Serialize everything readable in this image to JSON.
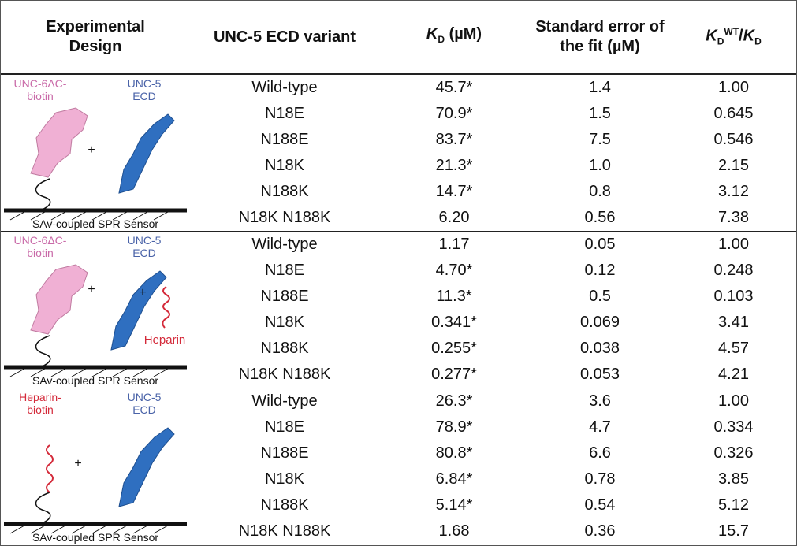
{
  "header": {
    "columns": [
      {
        "text": "Experimental Design"
      },
      {
        "text": "UNC-5 ECD variant"
      },
      {
        "k": "K",
        "sub": "D",
        "rest": " (µM)"
      },
      {
        "text": "Standard error of the fit (µM)"
      },
      {
        "k": "K",
        "sub": "D",
        "sup": "WT",
        "mid": "/",
        "k2": "K",
        "sub2": "D"
      }
    ]
  },
  "groups": [
    {
      "design": {
        "left": [
          "UNC-6ΔC-",
          "biotin"
        ],
        "right": [
          "UNC-5",
          "ECD"
        ],
        "sensor": "SAv-coupled SPR Sensor"
      },
      "rows": [
        [
          "Wild-type",
          "45.7*",
          "1.4",
          "1.00"
        ],
        [
          "N18E",
          "70.9*",
          "1.5",
          "0.645"
        ],
        [
          "N188E",
          "83.7*",
          "7.5",
          "0.546"
        ],
        [
          "N18K",
          "21.3*",
          "1.0",
          "2.15"
        ],
        [
          "N188K",
          "14.7*",
          "0.8",
          "3.12"
        ],
        [
          "N18K N188K",
          "6.20",
          "0.56",
          "7.38"
        ]
      ]
    },
    {
      "design": {
        "left": [
          "UNC-6ΔC-",
          "biotin"
        ],
        "right": [
          "UNC-5",
          "ECD"
        ],
        "extra": "Heparin",
        "sensor": "SAv-coupled SPR Sensor"
      },
      "rows": [
        [
          "Wild-type",
          "1.17",
          "0.05",
          "1.00"
        ],
        [
          "N18E",
          "4.70*",
          "0.12",
          "0.248"
        ],
        [
          "N188E",
          "11.3*",
          "0.5",
          "0.103"
        ],
        [
          "N18K",
          "0.341*",
          "0.069",
          "3.41"
        ],
        [
          "N188K",
          "0.255*",
          "0.038",
          "4.57"
        ],
        [
          "N18K N188K",
          "0.277*",
          "0.053",
          "4.21"
        ]
      ]
    },
    {
      "design": {
        "left": [
          "Heparin-",
          "biotin"
        ],
        "right": [
          "UNC-5",
          "ECD"
        ],
        "sensor": "SAv-coupled SPR Sensor"
      },
      "rows": [
        [
          "Wild-type",
          "26.3*",
          "3.6",
          "1.00"
        ],
        [
          "N18E",
          "78.9*",
          "4.7",
          "0.334"
        ],
        [
          "N188E",
          "80.8*",
          "6.6",
          "0.326"
        ],
        [
          "N18K",
          "6.84*",
          "0.78",
          "3.85"
        ],
        [
          "N188K",
          "5.14*",
          "0.54",
          "5.12"
        ],
        [
          "N18K N188K",
          "1.68",
          "0.36",
          "15.7"
        ]
      ]
    }
  ]
}
